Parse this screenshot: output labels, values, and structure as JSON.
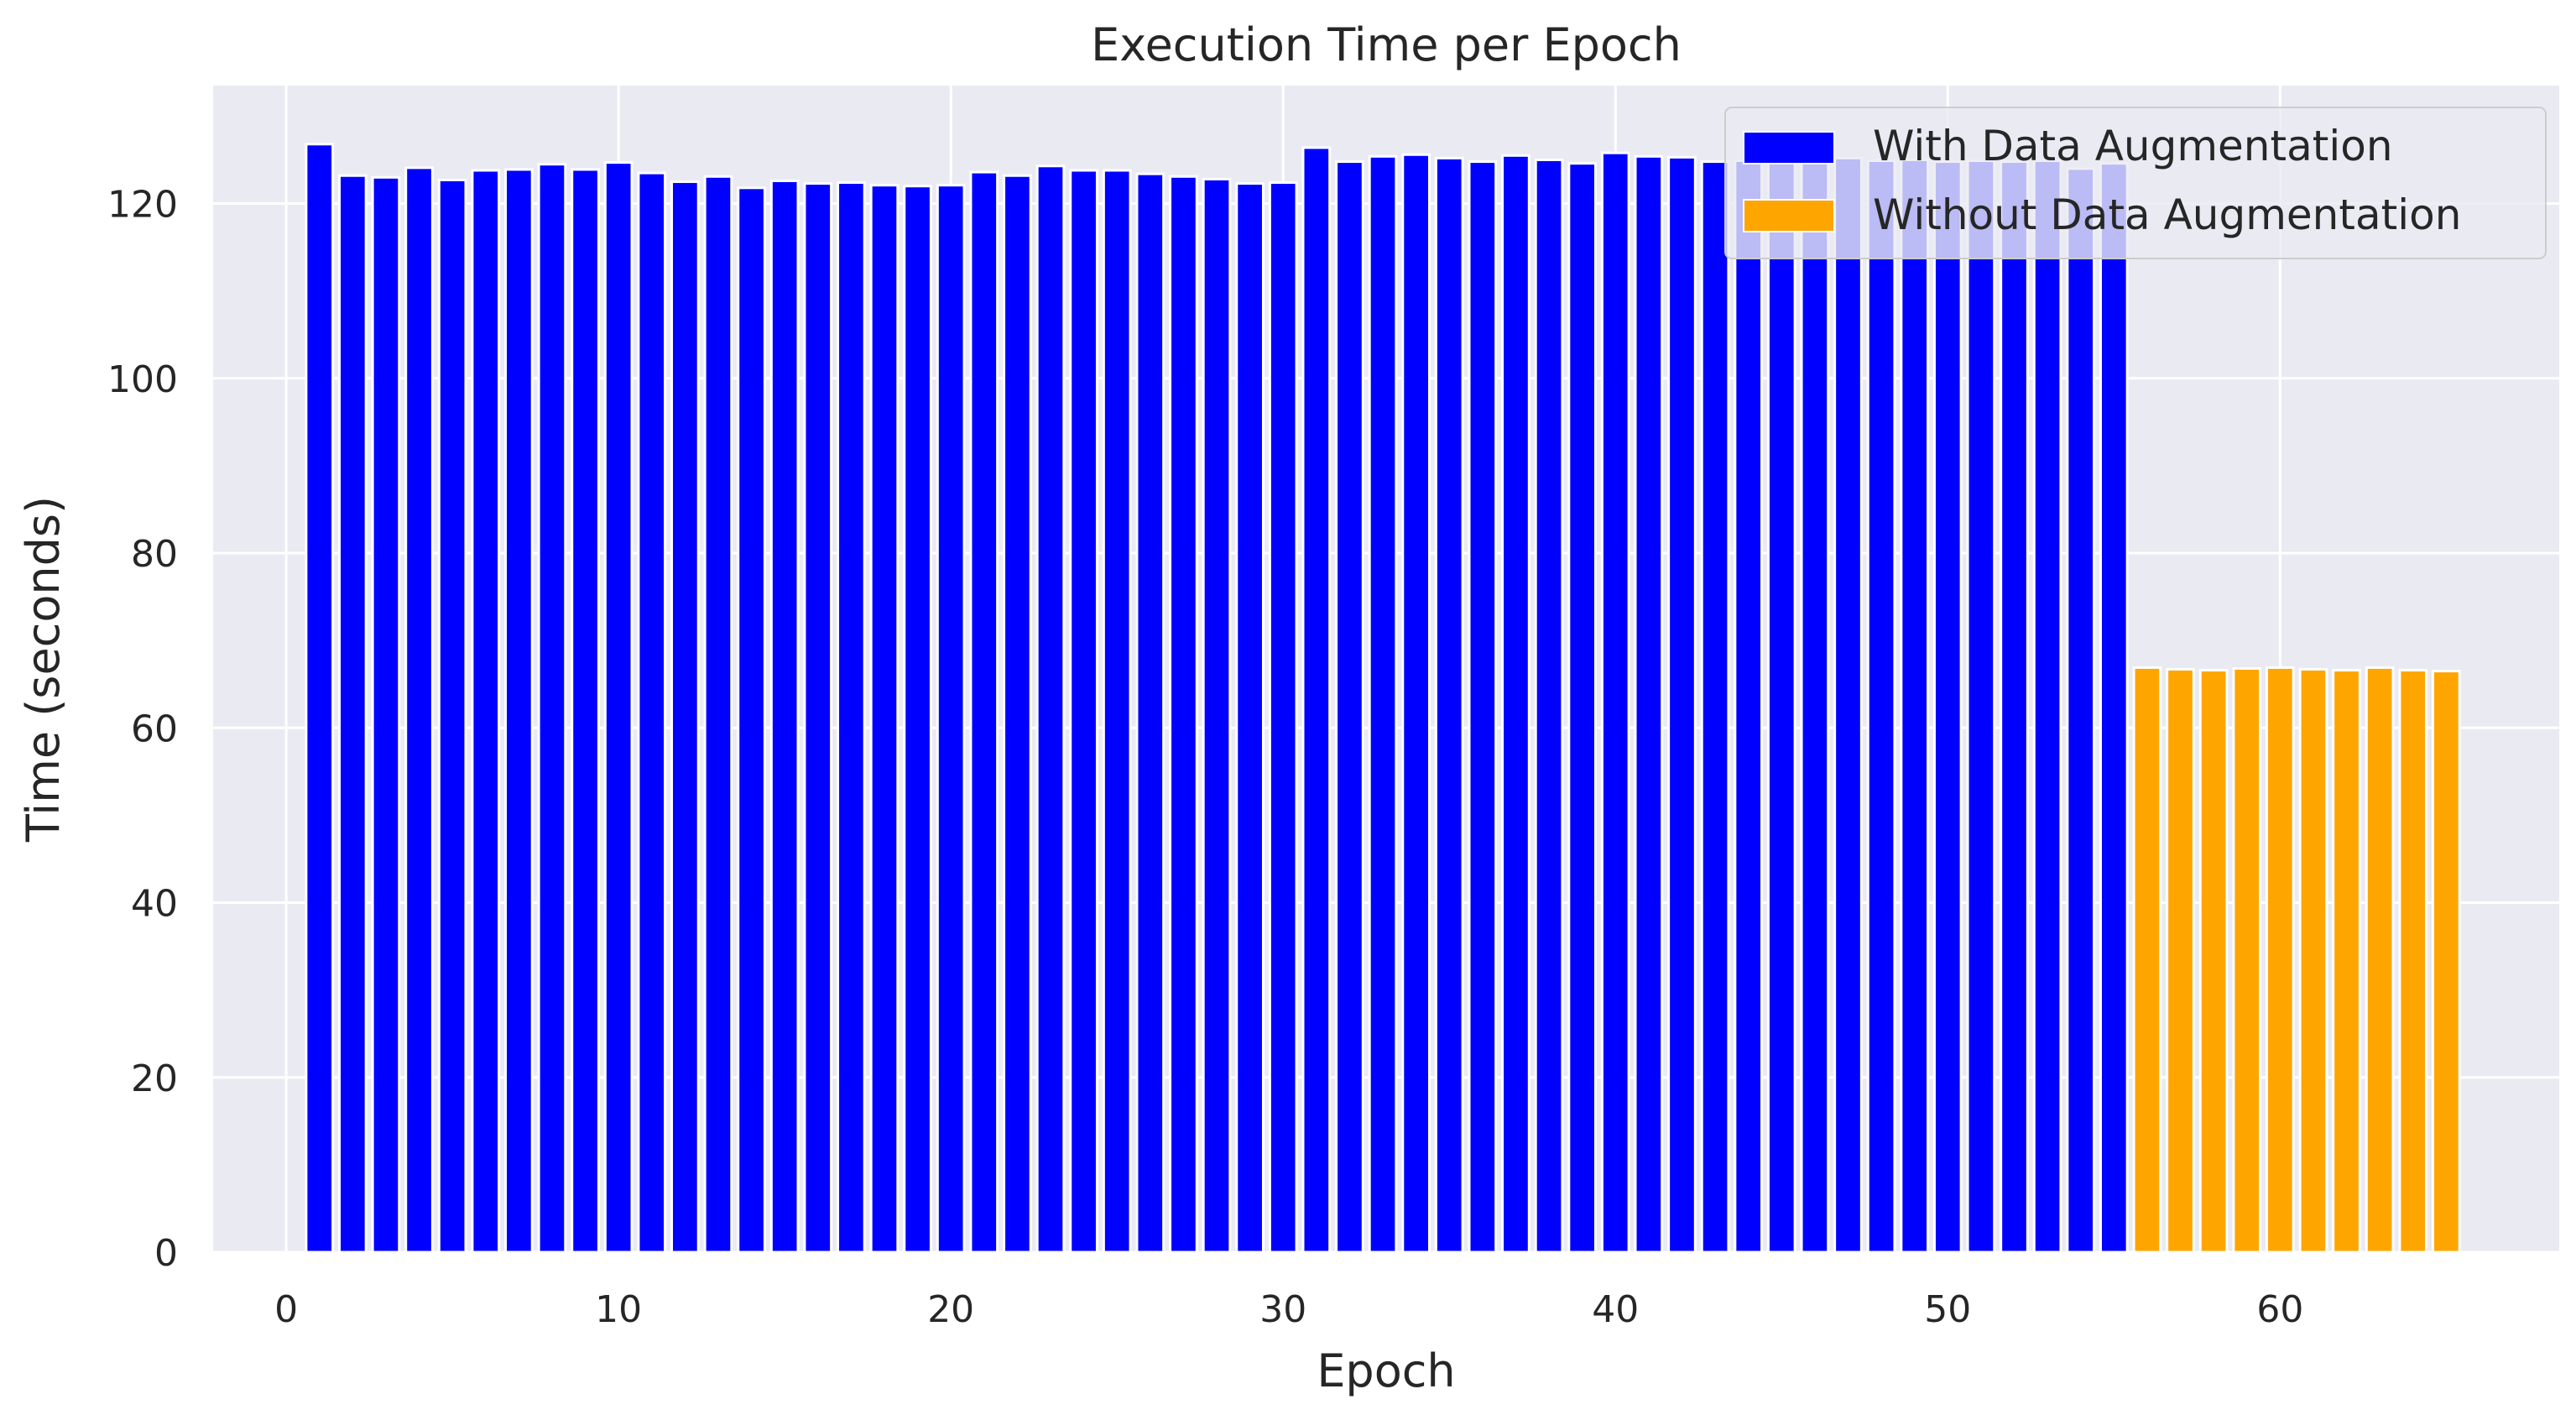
{
  "chart_data": {
    "type": "bar",
    "title": "Execution Time per Epoch",
    "xlabel": "Epoch",
    "ylabel": "Time (seconds)",
    "xlim": [
      -2.2,
      68.4
    ],
    "ylim": [
      0,
      133.5
    ],
    "xticks": [
      0,
      10,
      20,
      30,
      40,
      50,
      60
    ],
    "yticks": [
      0,
      20,
      40,
      60,
      80,
      100,
      120
    ],
    "grid": true,
    "legend_position": "upper right",
    "series": [
      {
        "name": "With Data Augmentation",
        "color": "#0000ff",
        "x": [
          1,
          2,
          3,
          4,
          5,
          6,
          7,
          8,
          9,
          10,
          11,
          12,
          13,
          14,
          15,
          16,
          17,
          18,
          19,
          20,
          21,
          22,
          23,
          24,
          25,
          26,
          27,
          28,
          29,
          30,
          31,
          32,
          33,
          34,
          35,
          36,
          37,
          38,
          39,
          40,
          41,
          42,
          43,
          44,
          45,
          46,
          47,
          48,
          49,
          50,
          51,
          52,
          53,
          54,
          55
        ],
        "values": [
          126.8,
          123.2,
          123.0,
          124.1,
          122.7,
          123.8,
          123.9,
          124.5,
          123.9,
          124.7,
          123.5,
          122.5,
          123.1,
          121.8,
          122.6,
          122.3,
          122.4,
          122.1,
          122.0,
          122.1,
          123.6,
          123.2,
          124.3,
          123.8,
          123.8,
          123.4,
          123.1,
          122.8,
          122.3,
          122.4,
          126.4,
          124.8,
          125.4,
          125.6,
          125.2,
          124.8,
          125.5,
          125.0,
          124.6,
          125.8,
          125.4,
          125.3,
          124.8,
          124.9,
          124.8,
          125.1,
          125.2,
          124.9,
          125.0,
          124.8,
          124.9,
          124.8,
          124.9,
          124.0,
          124.6
        ]
      },
      {
        "name": "Without Data Augmentation",
        "color": "#ffa500",
        "x": [
          56,
          57,
          58,
          59,
          60,
          61,
          62,
          63,
          64,
          65
        ],
        "values": [
          66.9,
          66.7,
          66.6,
          66.8,
          66.9,
          66.7,
          66.6,
          66.9,
          66.6,
          66.5
        ]
      }
    ]
  },
  "style": {
    "plot_background": "#eaeaf2",
    "grid_color": "#ffffff",
    "text_color": "#262626",
    "legend_background": "#eaeaf2",
    "legend_border": "#cccccc"
  }
}
